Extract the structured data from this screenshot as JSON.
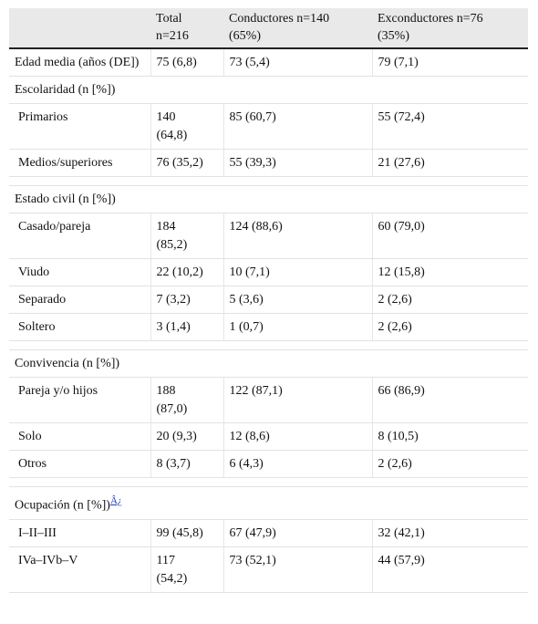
{
  "table": {
    "header": [
      [],
      [
        "Total",
        "n=216"
      ],
      [
        "Conductores n=140",
        "(65%)"
      ],
      [
        "Exconductores n=76",
        "(35%)"
      ]
    ],
    "rows": [
      {
        "cells": [
          "Edad media (años (DE])",
          "75 (6,8)",
          "73 (5,4)",
          "79 (7,1)"
        ]
      },
      {
        "section": "Escolaridad (n [%])"
      },
      {
        "cells": [
          "Primarios",
          "140 (64,8)",
          "85 (60,7)",
          "55 (72,4)"
        ]
      },
      {
        "cells": [
          "Medios/superiores",
          "76 (35,2)",
          "55 (39,3)",
          "21 (27,6)"
        ]
      },
      {
        "section": "Estado civil (n [%])"
      },
      {
        "cells": [
          "Casado/pareja",
          "184 (85,2)",
          "124 (88,6)",
          "60 (79,0)"
        ]
      },
      {
        "cells": [
          "Viudo",
          "22 (10,2)",
          "10 (7,1)",
          "12 (15,8)"
        ]
      },
      {
        "cells": [
          "Separado",
          "7 (3,2)",
          "5 (3,6)",
          "2 (2,6)"
        ]
      },
      {
        "cells": [
          "Soltero",
          "3 (1,4)",
          "1 (0,7)",
          "2 (2,6)"
        ]
      },
      {
        "section": "Convivencia (n [%])"
      },
      {
        "cells": [
          "Pareja y/o hijos",
          "188 (87,0)",
          "122 (87,1)",
          "66 (86,9)"
        ]
      },
      {
        "cells": [
          "Solo",
          "20 (9,3)",
          "12 (8,6)",
          "8 (10,5)"
        ]
      },
      {
        "cells": [
          "Otros",
          "8 (3,7)",
          "6 (4,3)",
          "2 (2,6)"
        ]
      },
      {
        "section": "Ocupación (n [%])",
        "note": "Â¿"
      },
      {
        "cells": [
          "I–II–III",
          "99 (45,8)",
          "67 (47,9)",
          "32 (42,1)"
        ]
      },
      {
        "cells": [
          "IVa–IVb–V",
          "117 (54,2)",
          "73 (52,1)",
          "44 (57,9)"
        ]
      }
    ]
  }
}
